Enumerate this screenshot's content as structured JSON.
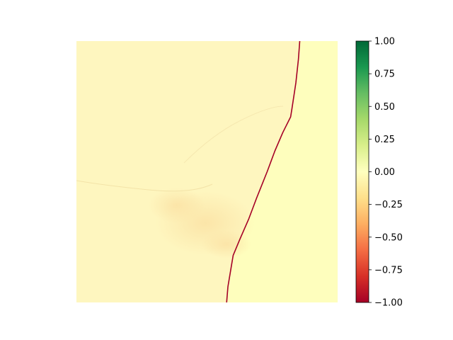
{
  "chart_data": {
    "type": "heatmap",
    "title": "",
    "xlabel": "",
    "ylabel": "",
    "axes_visible": false,
    "colormap": "RdYlGn",
    "colorbar": {
      "range": [
        -1.0,
        1.0
      ],
      "ticks": [
        1.0,
        0.75,
        0.5,
        0.25,
        0.0,
        -0.25,
        -0.5,
        -0.75,
        -1.0
      ],
      "tick_labels": [
        "1.00",
        "0.75",
        "0.50",
        "0.25",
        "0.00",
        "−0.25",
        "−0.50",
        "−0.75",
        "−1.00"
      ],
      "placement": "right"
    },
    "regions": [
      {
        "label": "land (left of boundary)",
        "approx_value": -0.05,
        "color": "#fef6bf"
      },
      {
        "label": "sea (right of boundary)",
        "approx_value": 0.0,
        "color": "#fefebd"
      },
      {
        "label": "coastline boundary",
        "approx_value": -1.0,
        "color": "#a50026"
      }
    ],
    "boundary_fraction_points": [
      [
        0.855,
        0.0
      ],
      [
        0.85,
        0.07
      ],
      [
        0.84,
        0.16
      ],
      [
        0.825,
        0.26
      ],
      [
        0.82,
        0.29
      ],
      [
        0.79,
        0.35
      ],
      [
        0.76,
        0.42
      ],
      [
        0.73,
        0.5
      ],
      [
        0.69,
        0.6
      ],
      [
        0.66,
        0.68
      ],
      [
        0.625,
        0.76
      ],
      [
        0.6,
        0.82
      ],
      [
        0.59,
        0.88
      ],
      [
        0.58,
        0.94
      ],
      [
        0.575,
        1.0
      ]
    ],
    "colors": {
      "land": "#fef6bf",
      "land_dark": "#fce6a8",
      "sea": "#fefebd",
      "boundary": "#a50026"
    }
  }
}
